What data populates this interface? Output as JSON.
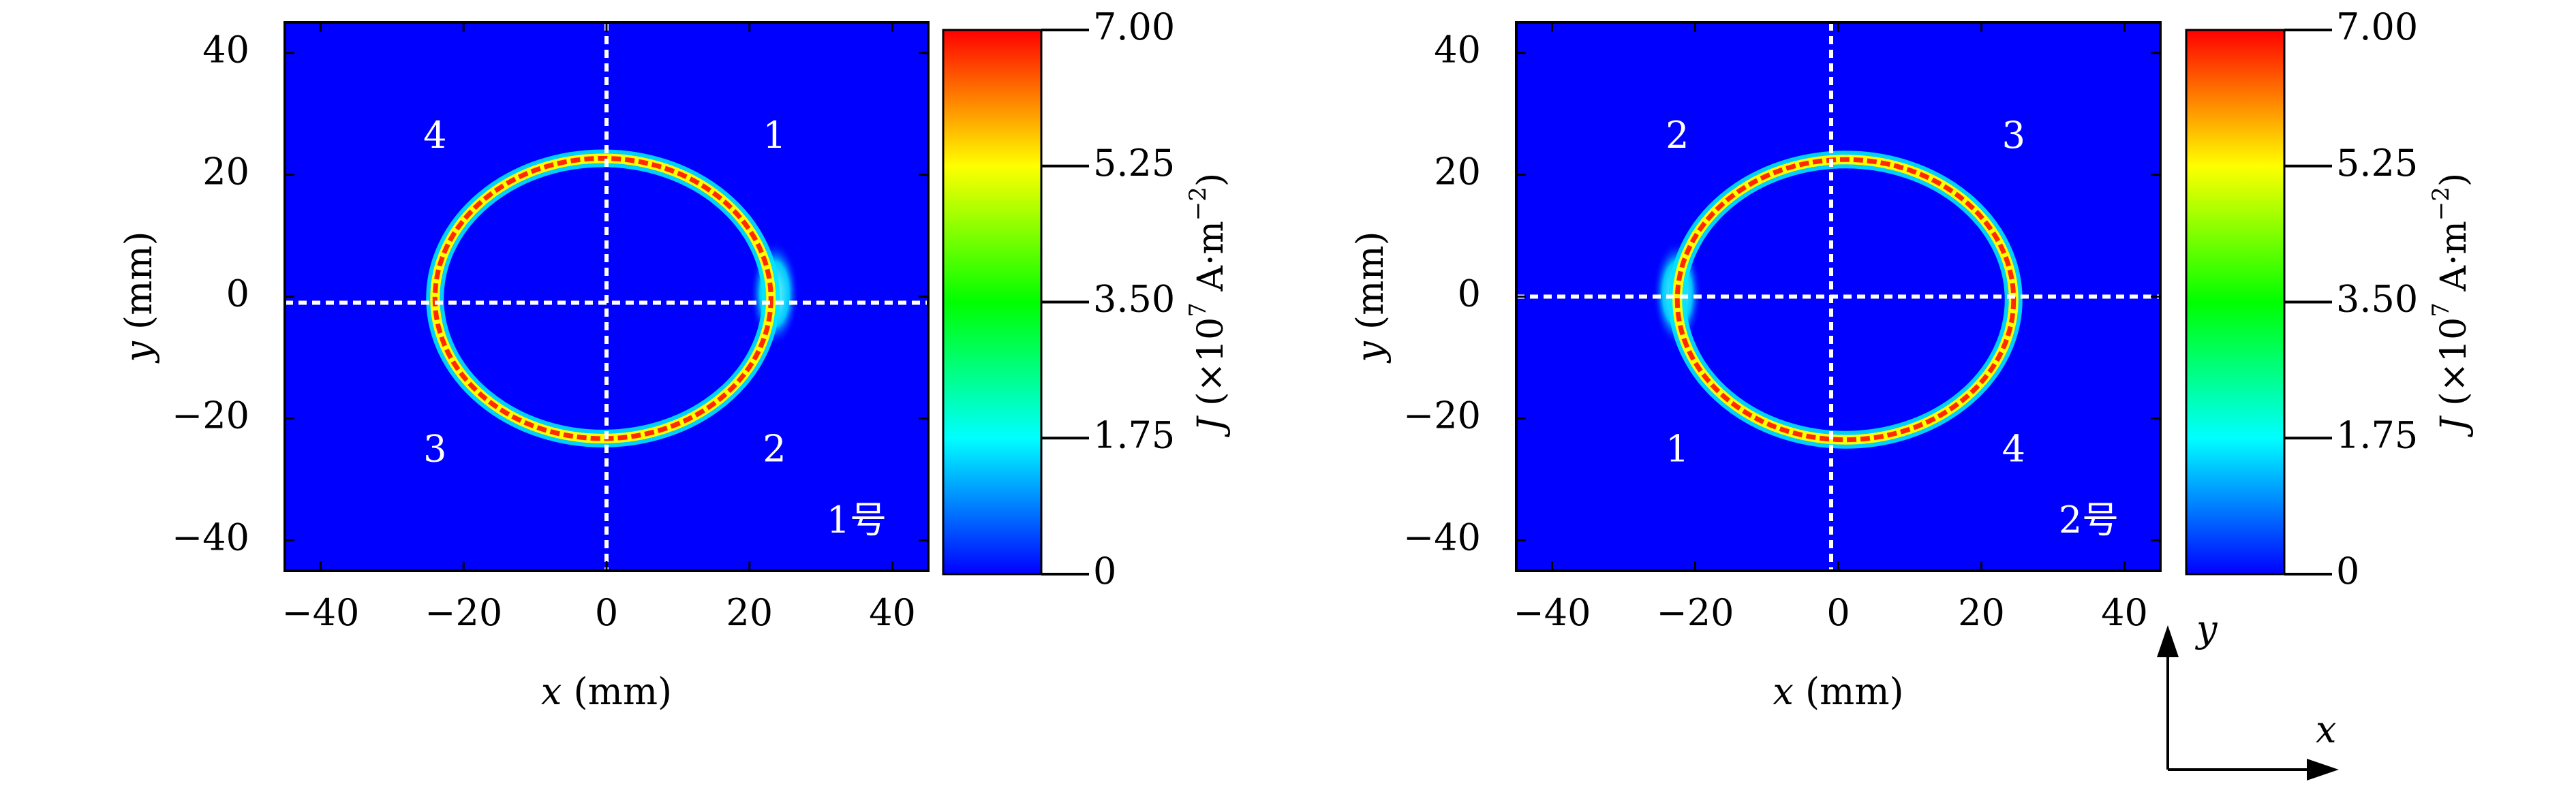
{
  "chart_data": [
    {
      "type": "heatmap",
      "quantity": "J",
      "xlabel_var": "x",
      "xlabel_unit": "(mm)",
      "ylabel_var": "y",
      "ylabel_unit": "(mm)",
      "xlim": [
        -45,
        45
      ],
      "ylim": [
        -45,
        45
      ],
      "xticks": [
        -40,
        -20,
        0,
        20,
        40
      ],
      "yticks": [
        -40,
        -20,
        0,
        20,
        40
      ],
      "xtick_labels": [
        "−40",
        "−20",
        "0",
        "20",
        "40"
      ],
      "ytick_labels": [
        "−40",
        "−20",
        "0",
        "20",
        "40"
      ],
      "ring": {
        "center_x": -0.5,
        "center_y": -0.3,
        "radius_x": 23.5,
        "radius_y": 23.0,
        "peak_value": 7.0
      },
      "bulge": {
        "x": 23.5,
        "y": 0.5,
        "value": 2.5
      },
      "crosshair": {
        "x": 0,
        "y": -1
      },
      "quadrant_labels": [
        {
          "text": "4",
          "x": -24,
          "y": 26
        },
        {
          "text": "1",
          "x": 23.5,
          "y": 26
        },
        {
          "text": "3",
          "x": -24,
          "y": -25.5
        },
        {
          "text": "2",
          "x": 23.5,
          "y": -25.5
        }
      ],
      "panel_label": "1号",
      "colorbar": {
        "min": 0,
        "max": 7.0,
        "ticks": [
          0,
          1.75,
          3.5,
          5.25,
          7.0
        ],
        "tick_labels": [
          "0",
          "1.75",
          "3.50",
          "5.25",
          "7.00"
        ],
        "label_var": "J",
        "label_text_a": "(×10",
        "label_sup_1": "7",
        "label_text_b": " A·m",
        "label_sup_2": "−2",
        "label_text_c": ")"
      }
    },
    {
      "type": "heatmap",
      "quantity": "J",
      "xlabel_var": "x",
      "xlabel_unit": "(mm)",
      "ylabel_var": "y",
      "ylabel_unit": "(mm)",
      "xlim": [
        -45,
        45
      ],
      "ylim": [
        -45,
        45
      ],
      "xticks": [
        -40,
        -20,
        0,
        20,
        40
      ],
      "yticks": [
        -40,
        -20,
        0,
        20,
        40
      ],
      "xtick_labels": [
        "−40",
        "−20",
        "0",
        "20",
        "40"
      ],
      "ytick_labels": [
        "−40",
        "−20",
        "0",
        "20",
        "40"
      ],
      "ring": {
        "center_x": 1.0,
        "center_y": -0.5,
        "radius_x": 23.5,
        "radius_y": 23.0,
        "peak_value": 7.0
      },
      "bulge": {
        "x": -22.5,
        "y": 0.5,
        "value": 2.5
      },
      "crosshair": {
        "x": -1,
        "y": 0
      },
      "quadrant_labels": [
        {
          "text": "2",
          "x": -22.5,
          "y": 26
        },
        {
          "text": "3",
          "x": 24.5,
          "y": 26
        },
        {
          "text": "1",
          "x": -22.5,
          "y": -25.5
        },
        {
          "text": "4",
          "x": 24.5,
          "y": -25.5
        }
      ],
      "panel_label": "2号",
      "colorbar": {
        "min": 0,
        "max": 7.0,
        "ticks": [
          0,
          1.75,
          3.5,
          5.25,
          7.0
        ],
        "tick_labels": [
          "0",
          "1.75",
          "3.50",
          "5.25",
          "7.00"
        ],
        "label_var": "J",
        "label_text_a": "(×10",
        "label_sup_1": "7",
        "label_text_b": " A·m",
        "label_sup_2": "−2",
        "label_text_c": ")"
      }
    }
  ],
  "coord_axes": {
    "x_label": "x",
    "y_label": "y"
  },
  "colors": {
    "background": "#0000ff",
    "crosshair": "#ffffff",
    "colormap": [
      "#0000ff",
      "#00ffff",
      "#00ff00",
      "#ffff00",
      "#ff0000"
    ]
  }
}
